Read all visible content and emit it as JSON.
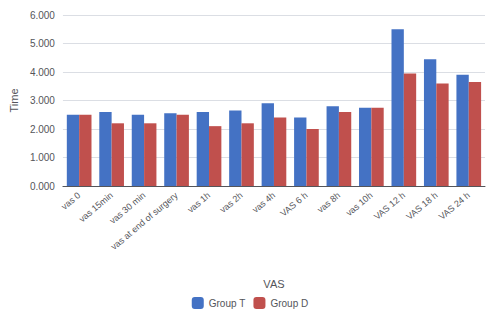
{
  "chart_data": {
    "type": "bar",
    "xlabel": "VAS",
    "ylabel": "Time",
    "categories": [
      "vas 0",
      "vas 15min",
      "vas 30 min",
      "vas at end of surgery",
      "vas 1h",
      "vas 2h",
      "vas 4h",
      "VAS 6 h",
      "vas 8h",
      "vas 10h",
      "VAS 12 h",
      "VAS 18 h",
      "VAS 24 h"
    ],
    "series": [
      {
        "name": "Group T",
        "color": "#4472C4",
        "values": [
          2.5,
          2.6,
          2.5,
          2.55,
          2.6,
          2.65,
          2.9,
          2.4,
          2.8,
          2.75,
          5.5,
          4.45,
          3.9
        ]
      },
      {
        "name": "Group D",
        "color": "#C0504D",
        "values": [
          2.5,
          2.2,
          2.2,
          2.5,
          2.1,
          2.2,
          2.4,
          2.0,
          2.6,
          2.75,
          3.95,
          3.6,
          3.65
        ]
      }
    ],
    "ylim": [
      0,
      6.0
    ],
    "yticks": [
      {
        "value": 0.0,
        "label": "0.000"
      },
      {
        "value": 1.0,
        "label": "1.000"
      },
      {
        "value": 2.0,
        "label": "2.000"
      },
      {
        "value": 3.0,
        "label": "3.000"
      },
      {
        "value": 4.0,
        "label": "4.000"
      },
      {
        "value": 5.0,
        "label": "5.000"
      },
      {
        "value": 6.0,
        "label": "6.000"
      }
    ],
    "grid": true,
    "legend": "bottom"
  }
}
